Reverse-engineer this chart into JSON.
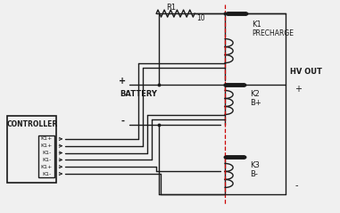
{
  "bg_color": "#f0f0f0",
  "line_color": "#1a1a1a",
  "dashed_color": "#cc0000",
  "text_color": "#1a1a1a",
  "figsize": [
    3.81,
    2.39
  ],
  "dpi": 100,
  "resistor_label": "R1",
  "resistor_value": "10",
  "k1_label": "K1",
  "k1_sub": "PRECHARGE",
  "k2_label": "K2",
  "k2_sub": "B+",
  "k3_label": "K3",
  "k3_sub": "B-",
  "battery_label": "BATTERY",
  "hv_label": "HV OUT",
  "ctrl_label": "CONTROLLER",
  "pin_labels": [
    "K1+",
    "K1+",
    "K1-",
    "K1-",
    "K1+",
    "K1-"
  ]
}
